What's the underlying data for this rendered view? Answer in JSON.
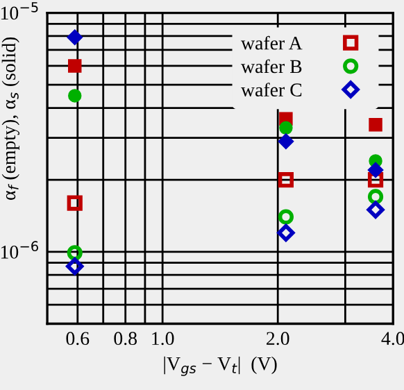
{
  "chart_data": {
    "type": "scatter",
    "xlabel": "|V$_{gs}$ − V$_{t}$|  (V)",
    "ylabel": "α$_{f}$ (empty), α$_{s}$ (solid)",
    "log": "xy",
    "grid": true,
    "legend": "top right",
    "xlim": [
      0.5,
      4.0
    ],
    "ylim": [
      5e-07,
      1e-05
    ],
    "xticks": [
      0.6,
      {
        "value": 0.7,
        "label": null
      },
      0.8,
      {
        "value": 0.9,
        "label": null
      },
      {
        "value": 1.0,
        "label": "1.0"
      },
      {
        "value": 2.0,
        "label": "2.0"
      },
      {
        "value": 3.0,
        "label": null
      },
      {
        "value": 4.0,
        "label": "4.0"
      }
    ],
    "yticks": [
      {
        "value": 5e-07,
        "label": null
      },
      {
        "value": 6e-07,
        "label": null
      },
      {
        "value": 7e-07,
        "label": null
      },
      {
        "value": 8e-07,
        "label": null
      },
      {
        "value": 9e-07,
        "label": null
      },
      {
        "value": 1e-06,
        "label": "10$^{−6}$"
      },
      {
        "value": 2e-06,
        "label": null
      },
      {
        "value": 3e-06,
        "label": null
      },
      {
        "value": 4e-06,
        "label": null
      },
      {
        "value": 5e-06,
        "label": null
      },
      {
        "value": 6e-06,
        "label": null
      },
      {
        "value": 7e-06,
        "label": null
      },
      {
        "value": 8e-06,
        "label": null
      },
      {
        "value": 9e-06,
        "label": null
      },
      {
        "value": 1e-05,
        "label": "10$^{−5}$"
      }
    ],
    "series": [
      {
        "name": "wafer A",
        "color": "#c00000",
        "marker": "square",
        "x": [
          0.59,
          2.1,
          3.6
        ],
        "values": [
          1.6e-06,
          2e-06,
          2e-06
        ]
      },
      {
        "name": "wafer B",
        "color": "#00b000",
        "marker": "circle",
        "x": [
          0.59,
          2.1,
          3.6
        ],
        "values": [
          9.9e-07,
          1.4e-06,
          1.7e-06
        ]
      },
      {
        "name": "wafer C",
        "color": "#0000c0",
        "marker": "diamond",
        "x": [
          0.59,
          2.1,
          3.6
        ],
        "values": [
          8.7e-07,
          1.2e-06,
          1.5e-06
        ]
      },
      {
        "color": "#c00000",
        "marker": "square",
        "x": [
          0.59,
          2.1,
          3.6
        ],
        "values": [
          6e-06,
          3.6e-06,
          3.4e-06
        ]
      },
      {
        "color": "#00b000",
        "marker": "circle",
        "x": [
          0.59,
          2.1,
          3.6
        ],
        "values": [
          4.5e-06,
          3.3e-06,
          2.4e-06
        ]
      },
      {
        "color": "#0000c0",
        "marker": "diamond",
        "x": [
          0.59,
          2.1,
          3.6
        ],
        "values": [
          7.9e-06,
          2.9e-06,
          2.2e-06
        ]
      }
    ]
  }
}
